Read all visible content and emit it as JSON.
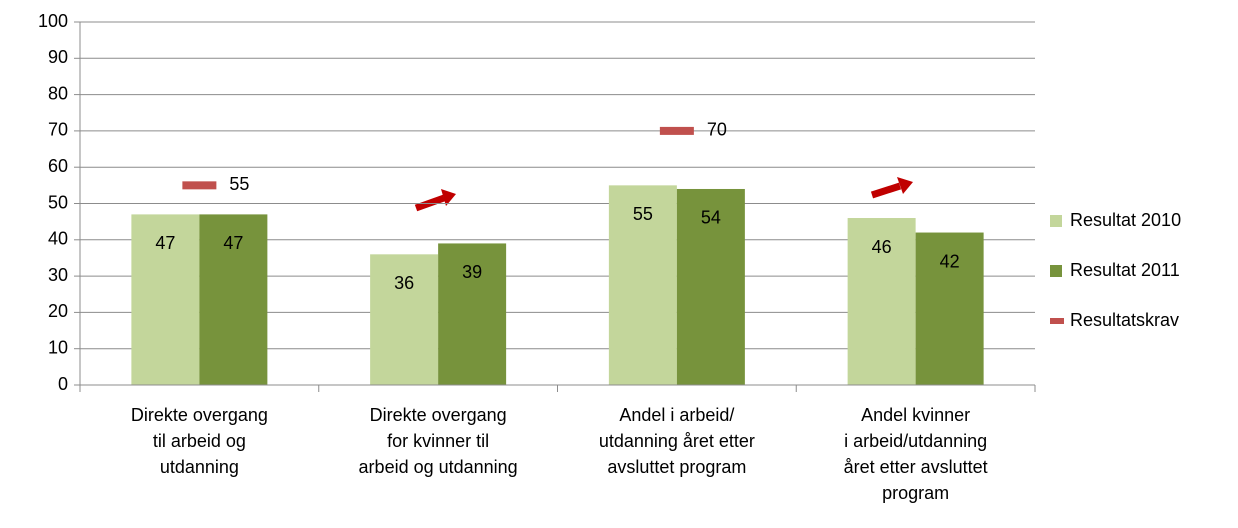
{
  "chart_data": {
    "type": "bar",
    "categories": [
      "Direkte overgang\ntil arbeid og\nutdanning",
      "Direkte overgang\nfor kvinner til\narbeid og utdanning",
      "Andel i arbeid/\nutdanning året etter\navsluttet program",
      "Andel kvinner\ni arbeid/utdanning\nåret etter avsluttet\nprogram"
    ],
    "series": [
      {
        "name": "Resultat 2010",
        "color": "#c3d69b",
        "values": [
          47,
          36,
          55,
          46
        ]
      },
      {
        "name": "Resultat 2011",
        "color": "#77933c",
        "values": [
          47,
          39,
          54,
          42
        ]
      },
      {
        "name": "Resultatskrav",
        "color": "#c0504d",
        "type": "marker",
        "values": [
          55,
          null,
          70,
          null
        ]
      }
    ],
    "ylim": [
      0,
      100
    ],
    "yticks": [
      0,
      10,
      20,
      30,
      40,
      50,
      60,
      70,
      80,
      90,
      100
    ],
    "grid": true,
    "legend": "right",
    "data_labels": true
  }
}
